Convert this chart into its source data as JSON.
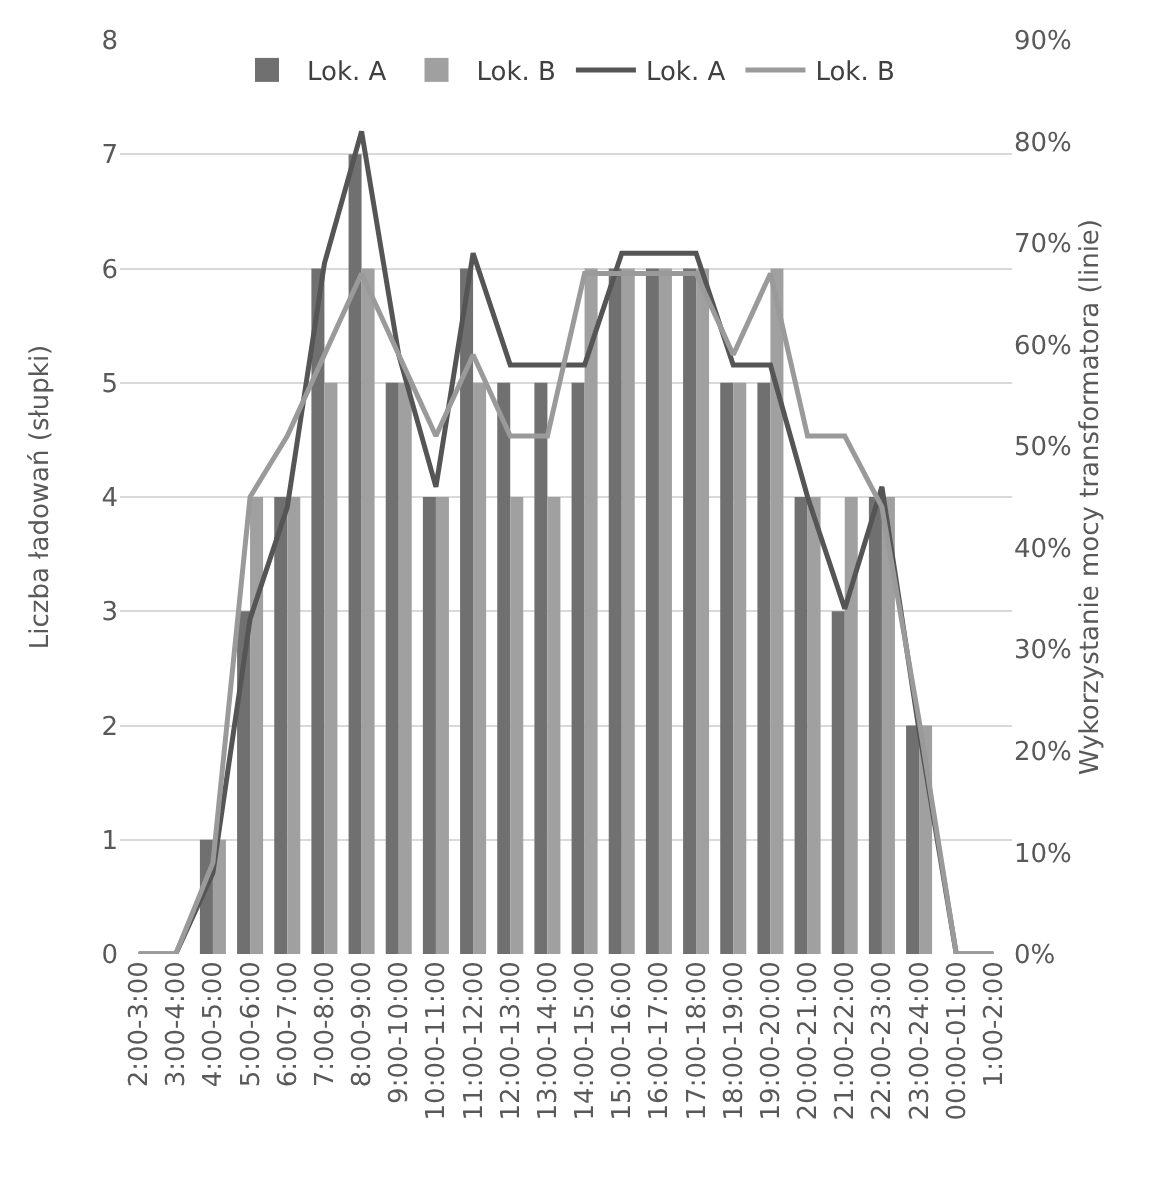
{
  "chart_data": {
    "type": "bar",
    "ylabel": "Liczba ładowań (słupki)",
    "y2label": "Wykorzystanie mocy transformatora (linie)",
    "categories": [
      "2:00-3:00",
      "3:00-4:00",
      "4:00-5:00",
      "5:00-6:00",
      "6:00-7:00",
      "7:00-8:00",
      "8:00-9:00",
      "9:00-10:00",
      "10:00-11:00",
      "11:00-12:00",
      "12:00-13:00",
      "13:00-14:00",
      "14:00-15:00",
      "15:00-16:00",
      "16:00-17:00",
      "17:00-18:00",
      "18:00-19:00",
      "19:00-20:00",
      "20:00-21:00",
      "21:00-22:00",
      "22:00-23:00",
      "23:00-24:00",
      "00:00-01:00",
      "1:00-2:00"
    ],
    "series": [
      {
        "name": "Lok. A",
        "color": "#707070",
        "values": [
          0,
          0,
          1,
          3,
          4,
          6,
          7,
          5,
          4,
          6,
          5,
          5,
          5,
          6,
          6,
          6,
          5,
          5,
          4,
          3,
          4,
          2,
          0,
          0
        ]
      },
      {
        "name": "Lok. B",
        "color": "#a0a0a0",
        "values": [
          0,
          0,
          1,
          4,
          4,
          5,
          6,
          5,
          4,
          5,
          4,
          4,
          6,
          6,
          6,
          6,
          5,
          6,
          4,
          4,
          4,
          2,
          0,
          0
        ]
      },
      {
        "name": "Lok. A",
        "type": "line",
        "axis": "y2",
        "color": "#555555",
        "values": [
          0,
          0,
          8,
          33,
          44,
          68,
          81,
          59,
          46,
          69,
          58,
          58,
          58,
          69,
          69,
          69,
          58,
          58,
          45,
          34,
          46,
          22,
          0,
          0
        ]
      },
      {
        "name": "Lok. B",
        "type": "line",
        "axis": "y2",
        "color": "#9a9a9a",
        "values": [
          0,
          0,
          9,
          45,
          51,
          59,
          67,
          59,
          51,
          59,
          51,
          51,
          67,
          67,
          67,
          67,
          59,
          67,
          51,
          51,
          44,
          23,
          0,
          0
        ]
      }
    ],
    "ylim": [
      0,
      8
    ],
    "yticks": [
      0,
      1,
      2,
      3,
      4,
      5,
      6,
      7,
      8
    ],
    "y2lim": [
      0,
      90
    ],
    "y2ticks": [
      {
        "value": 0,
        "label": "0%"
      },
      {
        "value": 10,
        "label": "10%"
      },
      {
        "value": 20,
        "label": "20%"
      },
      {
        "value": 30,
        "label": "30%"
      },
      {
        "value": 40,
        "label": "40%"
      },
      {
        "value": 50,
        "label": "50%"
      },
      {
        "value": 60,
        "label": "60%"
      },
      {
        "value": 70,
        "label": "70%"
      },
      {
        "value": 80,
        "label": "80%"
      },
      {
        "value": 90,
        "label": "90%"
      }
    ],
    "grid": "y",
    "legend": "top",
    "marker": "none",
    "line_style": "solid"
  }
}
